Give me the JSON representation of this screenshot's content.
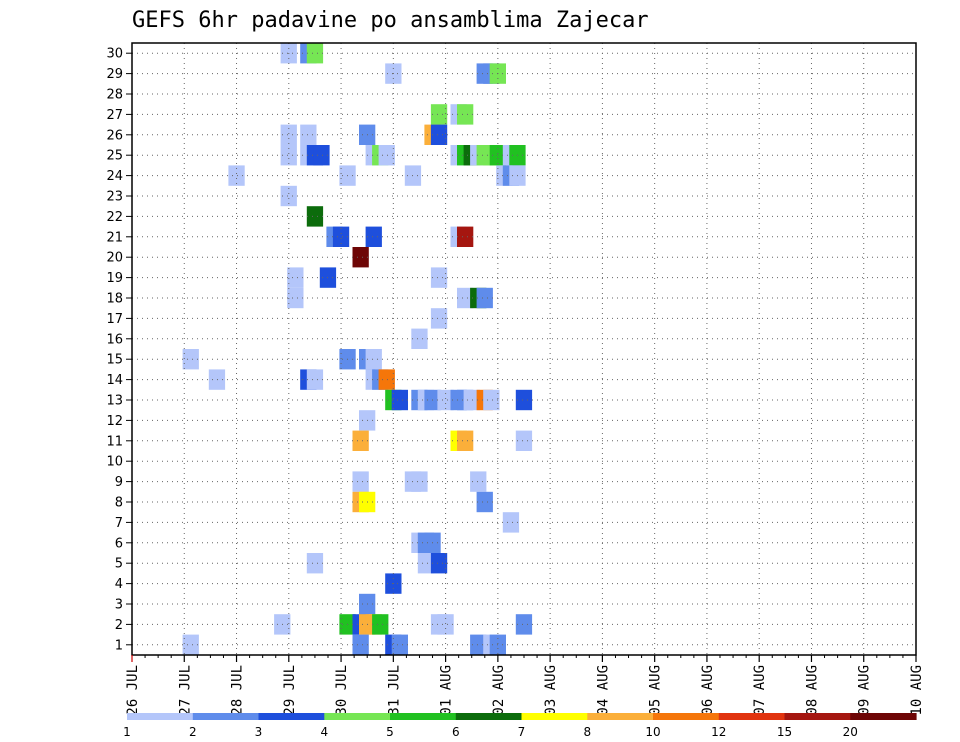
{
  "chart_data": {
    "type": "heatmap",
    "title": "GEFS 6hr padavine po ansamblima Zajecar",
    "xlabel": "",
    "ylabel": "",
    "x_ticks": [
      "26 JUL",
      "27 JUL",
      "28 JUL",
      "29 JUL",
      "30 JUL",
      "31 JUL",
      "01 AUG",
      "02 AUG",
      "03 AUG",
      "04 AUG",
      "05 AUG",
      "06 AUG",
      "07 AUG",
      "08 AUG",
      "09 AUG",
      "10 AUG"
    ],
    "x_step_hours": 6,
    "y_ticks": [
      1,
      2,
      3,
      4,
      5,
      6,
      7,
      8,
      9,
      10,
      11,
      12,
      13,
      14,
      15,
      16,
      17,
      18,
      19,
      20,
      21,
      22,
      23,
      24,
      25,
      26,
      27,
      28,
      29,
      30
    ],
    "xlim": [
      0,
      60
    ],
    "ylim": [
      1,
      30
    ],
    "grid": true,
    "legend": {
      "position": "bottom",
      "labels": [
        "1",
        "2",
        "3",
        "4",
        "5",
        "6",
        "7",
        "8",
        "10",
        "12",
        "15",
        "20"
      ],
      "colors": [
        "#b4c6fa",
        "#5f8ceb",
        "#1e4fdc",
        "#76e654",
        "#21c121",
        "#0c6c0c",
        "#ffff00",
        "#fbaf3a",
        "#f5760a",
        "#e1340f",
        "#a51610",
        "#6e0606"
      ]
    },
    "cells": [
      [
        12,
        30,
        1
      ],
      [
        13.5,
        30,
        2
      ],
      [
        14,
        30,
        4
      ],
      [
        20,
        29,
        1
      ],
      [
        27,
        29,
        2
      ],
      [
        27.5,
        29,
        2
      ],
      [
        28,
        29,
        4
      ],
      [
        23.5,
        27,
        4
      ],
      [
        25,
        27,
        1
      ],
      [
        25.5,
        27,
        4
      ],
      [
        12,
        26,
        1
      ],
      [
        13.5,
        26,
        1
      ],
      [
        18,
        26,
        2
      ],
      [
        23,
        26,
        8
      ],
      [
        23.5,
        26,
        3
      ],
      [
        12,
        25,
        1
      ],
      [
        13.5,
        25,
        1
      ],
      [
        14,
        25,
        3
      ],
      [
        14.5,
        25,
        3
      ],
      [
        18.5,
        25,
        1
      ],
      [
        19,
        25,
        4
      ],
      [
        19.5,
        25,
        1
      ],
      [
        25,
        25,
        1
      ],
      [
        25.5,
        25,
        5
      ],
      [
        26,
        25,
        6
      ],
      [
        26.5,
        25,
        1
      ],
      [
        27,
        25,
        4
      ],
      [
        27.5,
        25,
        4
      ],
      [
        28,
        25,
        5
      ],
      [
        29,
        25,
        1
      ],
      [
        29.5,
        25,
        5
      ],
      [
        8,
        24,
        1
      ],
      [
        16.5,
        24,
        1
      ],
      [
        21.5,
        24,
        1
      ],
      [
        28.5,
        24,
        1
      ],
      [
        29,
        24,
        2
      ],
      [
        29.5,
        24,
        1
      ],
      [
        12,
        23,
        1
      ],
      [
        14,
        22,
        6
      ],
      [
        15.5,
        21,
        2
      ],
      [
        16,
        21,
        3
      ],
      [
        18.5,
        21,
        3
      ],
      [
        25,
        21,
        1
      ],
      [
        25.5,
        21,
        11
      ],
      [
        17.5,
        20,
        12
      ],
      [
        12.5,
        19,
        1
      ],
      [
        15,
        19,
        3
      ],
      [
        23.5,
        19,
        1
      ],
      [
        12.5,
        18,
        1
      ],
      [
        25.5,
        18,
        1
      ],
      [
        26.5,
        18,
        6
      ],
      [
        27,
        18,
        2
      ],
      [
        23.5,
        17,
        1
      ],
      [
        22,
        16,
        1
      ],
      [
        4.5,
        15,
        1
      ],
      [
        16.5,
        15,
        2
      ],
      [
        18,
        15,
        2
      ],
      [
        18.5,
        15,
        1
      ],
      [
        6.5,
        14,
        1
      ],
      [
        13.5,
        14,
        3
      ],
      [
        14,
        14,
        1
      ],
      [
        18.5,
        14,
        1
      ],
      [
        19,
        14,
        2
      ],
      [
        19.5,
        14,
        9
      ],
      [
        20,
        13,
        5
      ],
      [
        20.5,
        13,
        3
      ],
      [
        22,
        13,
        2
      ],
      [
        22.5,
        13,
        1
      ],
      [
        23,
        13,
        2
      ],
      [
        24,
        13,
        1
      ],
      [
        25,
        13,
        2
      ],
      [
        25.5,
        13,
        2
      ],
      [
        26,
        13,
        1
      ],
      [
        27,
        13,
        9
      ],
      [
        27.5,
        13,
        1
      ],
      [
        30,
        13,
        3
      ],
      [
        18,
        12,
        1
      ],
      [
        17.5,
        11,
        8
      ],
      [
        25,
        11,
        7
      ],
      [
        25.5,
        11,
        8
      ],
      [
        30,
        11,
        1
      ],
      [
        21.5,
        9,
        1
      ],
      [
        22,
        9,
        1
      ],
      [
        26.5,
        9,
        1
      ],
      [
        17.5,
        9,
        1
      ],
      [
        17.5,
        8,
        8
      ],
      [
        18,
        8,
        7
      ],
      [
        27,
        8,
        2
      ],
      [
        29,
        7,
        1
      ],
      [
        22,
        6,
        1
      ],
      [
        22.5,
        6,
        2
      ],
      [
        23,
        6,
        2
      ],
      [
        14,
        5,
        1
      ],
      [
        22.5,
        5,
        1
      ],
      [
        23.5,
        5,
        3
      ],
      [
        20,
        4,
        3
      ],
      [
        18,
        3,
        2
      ],
      [
        11.5,
        2,
        1
      ],
      [
        16.5,
        2,
        5
      ],
      [
        17.5,
        2,
        3
      ],
      [
        18,
        2,
        8
      ],
      [
        18.5,
        2,
        8
      ],
      [
        19,
        2,
        5
      ],
      [
        23.5,
        2,
        1
      ],
      [
        24,
        2,
        1
      ],
      [
        30,
        2,
        2
      ],
      [
        4.5,
        1,
        1
      ],
      [
        17.5,
        1,
        2
      ],
      [
        20,
        1,
        3
      ],
      [
        20.5,
        1,
        2
      ],
      [
        26.5,
        1,
        2
      ],
      [
        27.5,
        1,
        1
      ],
      [
        28,
        1,
        2
      ]
    ]
  }
}
